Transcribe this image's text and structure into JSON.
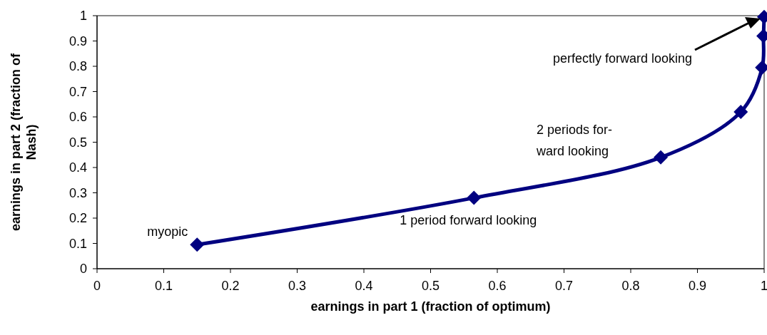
{
  "chart_data": {
    "type": "line",
    "xlabel": "earnings in part 1 (fraction of optimum)",
    "ylabel": "earnings in part 2 (fraction of Nash)",
    "x": [
      0.15,
      0.565,
      0.845,
      0.965,
      0.997,
      0.999,
      1
    ],
    "series": [
      {
        "color": "#000080",
        "values": [
          0.095,
          0.28,
          0.44,
          0.62,
          0.795,
          0.92,
          0.995
        ]
      }
    ],
    "xlim": [
      0,
      1
    ],
    "ylim": [
      0,
      1
    ],
    "xticks": [
      0,
      0.1,
      0.2,
      0.3,
      0.4,
      0.5,
      0.6,
      0.7,
      0.8,
      0.9,
      1
    ],
    "yticks": [
      0,
      0.1,
      0.2,
      0.3,
      0.4,
      0.5,
      0.6,
      0.7,
      0.8,
      0.9,
      1
    ],
    "grid": false,
    "marker": "diamond",
    "line_style": "solid",
    "annotations": [
      {
        "text": "myopic",
        "x": 0.15,
        "y": 0.095
      },
      {
        "text": "1 period forward looking",
        "x": 0.565,
        "y": 0.28
      },
      "2 periods for-\nward looking",
      "perfectly forward looking"
    ]
  }
}
